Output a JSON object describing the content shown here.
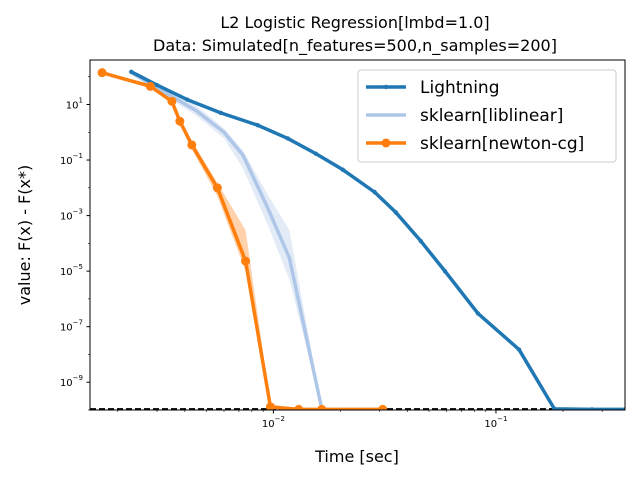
{
  "chart_data": {
    "type": "line",
    "title_line1": "L2 Logistic Regression[lmbd=1.0]",
    "title_line2": "Data: Simulated[n_features=500,n_samples=200]",
    "xlabel": "Time [sec]",
    "ylabel": "value: F(x) - F(x*)",
    "xscale": "log",
    "yscale": "log",
    "xlim": [
      0.0015,
      0.38
    ],
    "ylim": [
      1e-10,
      400
    ],
    "x_ticks": [
      {
        "value": 0.01,
        "base": "10",
        "exp": "−2"
      },
      {
        "value": 0.1,
        "base": "10",
        "exp": "−1"
      }
    ],
    "y_ticks": [
      {
        "value": 1e-09,
        "base": "10",
        "exp": "−9"
      },
      {
        "value": 1e-07,
        "base": "10",
        "exp": "−7"
      },
      {
        "value": 1e-05,
        "base": "10",
        "exp": "−5"
      },
      {
        "value": 0.001,
        "base": "10",
        "exp": "−3"
      },
      {
        "value": 0.1,
        "base": "10",
        "exp": "−1"
      },
      {
        "value": 10,
        "base": "10",
        "exp": "1"
      }
    ],
    "reference_line": {
      "y": 1.1e-10,
      "style": "dashed",
      "color": "#000000"
    },
    "legend_position": "top-right",
    "series": [
      {
        "name": "Lightning",
        "color": "#1f77b4",
        "marker": "dot",
        "x": [
          0.0023,
          0.003,
          0.0041,
          0.0058,
          0.0085,
          0.0116,
          0.0155,
          0.0205,
          0.0285,
          0.0355,
          0.046,
          0.059,
          0.083,
          0.127,
          0.183,
          0.27,
          0.38
        ],
        "y": [
          150,
          50,
          15,
          5,
          1.8,
          0.6,
          0.17,
          0.045,
          0.007,
          0.0013,
          0.00012,
          1e-05,
          3e-07,
          1.5e-08,
          1.1e-10,
          1.05e-10,
          1.05e-10
        ],
        "band_low": [],
        "band_high": []
      },
      {
        "name": "sklearn[liblinear]",
        "color": "#aec7e8",
        "marker": "none",
        "x": [
          0.0023,
          0.0045,
          0.006,
          0.0073,
          0.0094,
          0.0118,
          0.0165
        ],
        "y": [
          140,
          6,
          1,
          0.15,
          0.002,
          3e-05,
          1.1e-10
        ],
        "band_low": [
          120,
          4,
          0.6,
          0.05,
          0.0005,
          5e-06,
          1.1e-10
        ],
        "band_high": [
          170,
          9,
          1.4,
          0.22,
          0.006,
          0.0003,
          1.2e-10
        ]
      },
      {
        "name": "sklearn[newton-cg]",
        "color": "#ff7f0e",
        "marker": "circle",
        "x": [
          0.0017,
          0.0028,
          0.0035,
          0.0038,
          0.0043,
          0.0056,
          0.0075,
          0.0097,
          0.013,
          0.0165,
          0.031
        ],
        "y": [
          140,
          45,
          13,
          2.5,
          0.35,
          0.01,
          2.3e-05,
          1.3e-10,
          1.05e-10,
          1.05e-10,
          1.05e-10
        ],
        "band_low": [
          130,
          40,
          11,
          2.0,
          0.25,
          0.005,
          1e-05,
          1.1e-10,
          1e-10,
          1e-10,
          1e-10
        ],
        "band_high": [
          150,
          55,
          16,
          3.2,
          0.5,
          0.015,
          0.0003,
          1.6e-10,
          1.1e-10,
          1.1e-10,
          1.1e-10
        ]
      }
    ]
  }
}
